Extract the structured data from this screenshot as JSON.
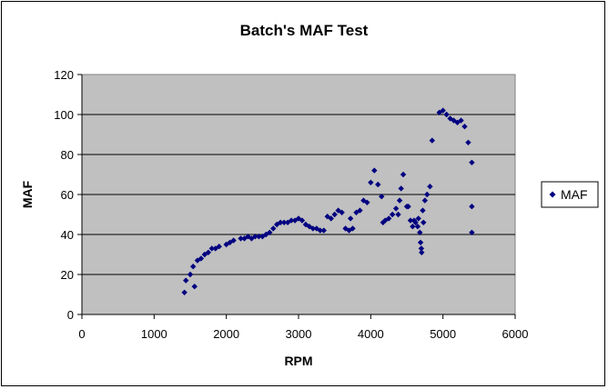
{
  "chart_data": {
    "type": "scatter",
    "title": "Batch's MAF Test",
    "xlabel": "RPM",
    "ylabel": "MAF",
    "xlim": [
      0,
      6000
    ],
    "ylim": [
      0,
      120
    ],
    "xticks": [
      0,
      1000,
      2000,
      3000,
      4000,
      5000,
      6000
    ],
    "yticks": [
      0,
      20,
      40,
      60,
      80,
      100,
      120
    ],
    "grid": "horizontal",
    "plot_background": "#c0c0c0",
    "legend_position": "right",
    "series": [
      {
        "name": "MAF",
        "color": "#000080",
        "marker": "diamond",
        "points": [
          [
            1420,
            11
          ],
          [
            1440,
            17
          ],
          [
            1500,
            20
          ],
          [
            1540,
            24
          ],
          [
            1560,
            14
          ],
          [
            1600,
            27
          ],
          [
            1650,
            28
          ],
          [
            1700,
            30
          ],
          [
            1750,
            31
          ],
          [
            1800,
            33
          ],
          [
            1850,
            33
          ],
          [
            1900,
            34
          ],
          [
            2000,
            35
          ],
          [
            2050,
            36
          ],
          [
            2100,
            37
          ],
          [
            2200,
            38
          ],
          [
            2250,
            38
          ],
          [
            2300,
            39
          ],
          [
            2350,
            38
          ],
          [
            2400,
            39
          ],
          [
            2450,
            39
          ],
          [
            2500,
            39
          ],
          [
            2550,
            40
          ],
          [
            2600,
            41
          ],
          [
            2650,
            43
          ],
          [
            2700,
            45
          ],
          [
            2750,
            46
          ],
          [
            2800,
            46
          ],
          [
            2850,
            46
          ],
          [
            2900,
            47
          ],
          [
            2950,
            47
          ],
          [
            3000,
            48
          ],
          [
            3050,
            47
          ],
          [
            3100,
            45
          ],
          [
            3150,
            44
          ],
          [
            3200,
            43
          ],
          [
            3250,
            43
          ],
          [
            3300,
            42
          ],
          [
            3350,
            42
          ],
          [
            3400,
            49
          ],
          [
            3450,
            48
          ],
          [
            3500,
            50
          ],
          [
            3550,
            52
          ],
          [
            3600,
            51
          ],
          [
            3650,
            43
          ],
          [
            3700,
            42
          ],
          [
            3720,
            48
          ],
          [
            3750,
            43
          ],
          [
            3800,
            51
          ],
          [
            3850,
            52
          ],
          [
            3900,
            57
          ],
          [
            3950,
            56
          ],
          [
            4000,
            66
          ],
          [
            4050,
            72
          ],
          [
            4100,
            65
          ],
          [
            4150,
            59
          ],
          [
            4170,
            46
          ],
          [
            4200,
            47
          ],
          [
            4250,
            48
          ],
          [
            4300,
            50
          ],
          [
            4350,
            53
          ],
          [
            4380,
            50
          ],
          [
            4400,
            57
          ],
          [
            4420,
            63
          ],
          [
            4450,
            70
          ],
          [
            4500,
            54
          ],
          [
            4520,
            54
          ],
          [
            4550,
            47
          ],
          [
            4580,
            44
          ],
          [
            4600,
            47
          ],
          [
            4620,
            46
          ],
          [
            4650,
            44
          ],
          [
            4660,
            48
          ],
          [
            4680,
            41
          ],
          [
            4690,
            36
          ],
          [
            4700,
            33
          ],
          [
            4705,
            31
          ],
          [
            4720,
            52
          ],
          [
            4730,
            46
          ],
          [
            4750,
            57
          ],
          [
            4780,
            60
          ],
          [
            4820,
            64
          ],
          [
            4850,
            87
          ],
          [
            4950,
            101
          ],
          [
            5000,
            102
          ],
          [
            5050,
            100
          ],
          [
            5100,
            98
          ],
          [
            5150,
            97
          ],
          [
            5200,
            96
          ],
          [
            5250,
            97
          ],
          [
            5300,
            94
          ],
          [
            5350,
            86
          ],
          [
            5400,
            76
          ],
          [
            5400,
            54
          ],
          [
            5400,
            41
          ]
        ]
      }
    ]
  }
}
